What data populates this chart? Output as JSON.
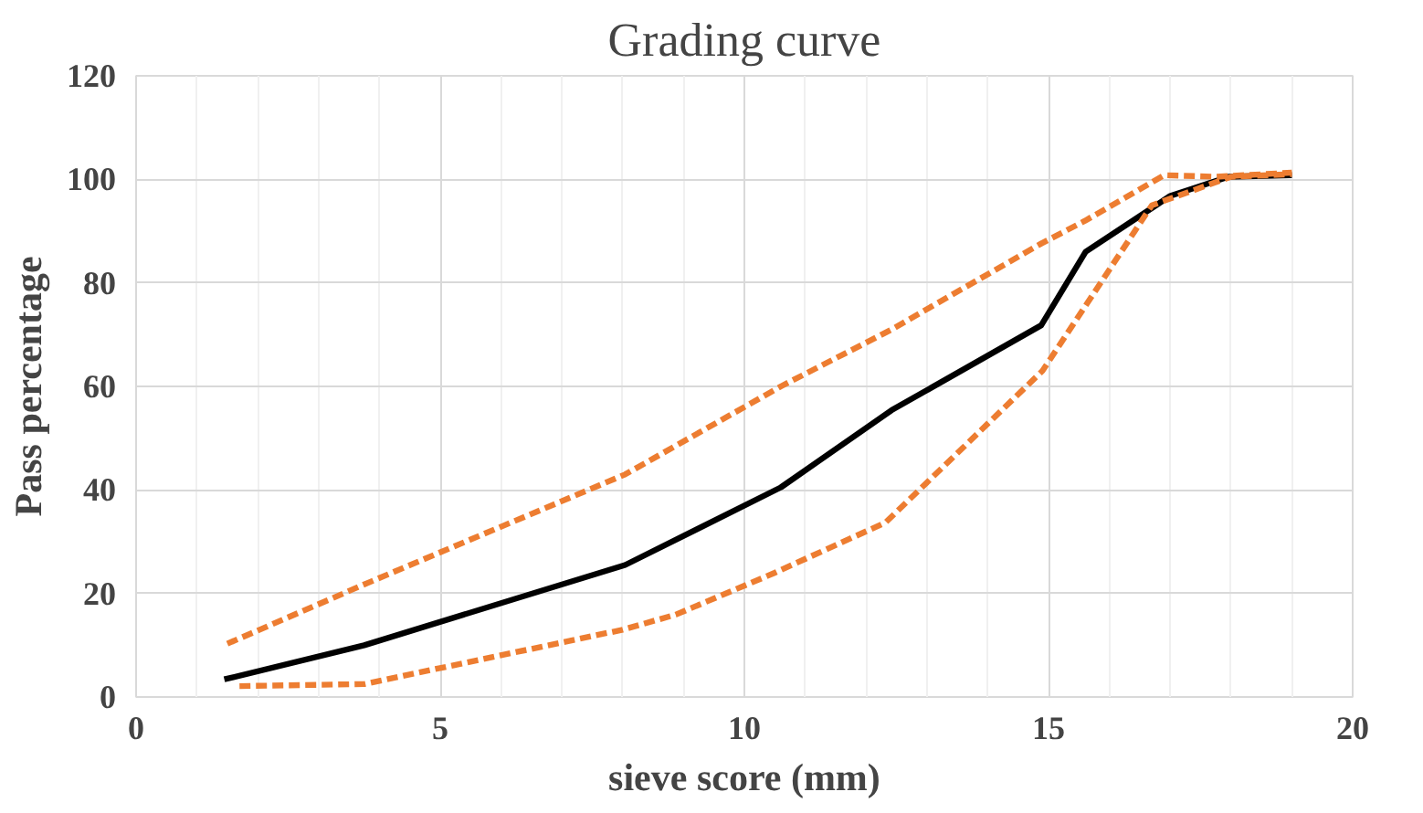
{
  "chart_data": {
    "type": "line",
    "title": "Grading curve",
    "xlabel": "sieve score (mm)",
    "ylabel": "Pass percentage",
    "xlim": [
      0,
      20
    ],
    "xticks": [
      0,
      5,
      10,
      15,
      20
    ],
    "ylim": [
      0,
      120
    ],
    "yticks": [
      0,
      20,
      40,
      60,
      80,
      100,
      120
    ],
    "grid": true,
    "marker": "none",
    "series": [
      {
        "color": "#000000",
        "line_style": "solid",
        "x": [
          1.45,
          3.75,
          8.04,
          10.6,
          12.42,
          14.88,
          15.61,
          17.0,
          17.96,
          19.0
        ],
        "values": [
          3.4,
          10,
          25.5,
          40.5,
          55.4,
          71.8,
          86,
          96.8,
          100.5,
          100.8
        ]
      },
      {
        "color": "#ed7d31",
        "line_style": "dashed",
        "x": [
          1.5,
          3.8,
          8.04,
          10.6,
          12.42,
          14.88,
          15.6,
          16.9,
          17.75,
          19.0
        ],
        "values": [
          10.3,
          22,
          43,
          60,
          71,
          87.6,
          92,
          100.8,
          100.5,
          101.3
        ]
      },
      {
        "color": "#ed7d31",
        "line_style": "dashed",
        "x": [
          1.7,
          3.75,
          8.0,
          8.87,
          10.5,
          12.32,
          14.9,
          16.7,
          18.0,
          19.0
        ],
        "values": [
          2.1,
          2.5,
          13,
          15.9,
          24,
          33.7,
          63,
          95,
          100.5,
          101
        ]
      }
    ]
  }
}
